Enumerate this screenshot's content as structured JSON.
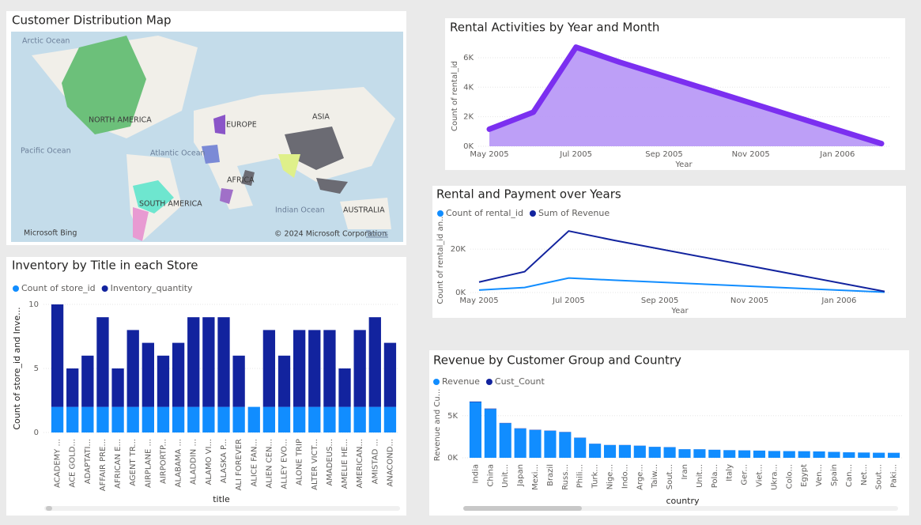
{
  "map": {
    "title": "Customer Distribution Map",
    "labels": [
      "Arctic Ocean",
      "NORTH AMERICA",
      "EUROPE",
      "ASIA",
      "Pacific Ocean",
      "Atlantic Ocean",
      "AFRICA",
      "SOUTH AMERICA",
      "Indian Ocean",
      "AUSTRALIA"
    ],
    "attribution": [
      "Microsoft Bing",
      "© 2024 Microsoft Corporation",
      "Terms"
    ]
  },
  "chart_data": [
    {
      "type": "area",
      "title": "Rental Activities by Year and Month",
      "x_label": "Year",
      "y_label": "Count of rental_id",
      "x": [
        "May 2005",
        "Jun 2005",
        "Jul 2005",
        "Aug 2005",
        "Feb 2006"
      ],
      "values": [
        1156,
        2311,
        6709,
        5686,
        182
      ],
      "color": "#7b2ff0",
      "xlim": [
        "May 2005",
        "Feb 2006"
      ],
      "xticks": [
        "May 2005",
        "Jul 2005",
        "Sep 2005",
        "Nov 2005",
        "Jan 2006"
      ],
      "ylim": [
        0,
        6800
      ],
      "yticks": [
        {
          "value": 0,
          "label": "0K"
        },
        {
          "value": 2000,
          "label": "2K"
        },
        {
          "value": 4000,
          "label": "4K"
        },
        {
          "value": 6000,
          "label": "6K"
        }
      ],
      "grid": true
    },
    {
      "type": "line",
      "title": "Rental and Payment over Years",
      "x_label": "Year",
      "y_label": "Count of rental_id an...",
      "x": [
        "May 2005",
        "Jun 2005",
        "Jul 2005",
        "Aug 2005",
        "Feb 2006"
      ],
      "series": [
        {
          "name": "Count of rental_id",
          "color": "#118dff",
          "values": [
            1156,
            2311,
            6709,
            5686,
            182
          ]
        },
        {
          "name": "Sum of Revenue",
          "color": "#12239e",
          "values": [
            4824,
            9632,
            28374,
            24072,
            514
          ]
        }
      ],
      "xlim": [
        "May 2005",
        "Feb 2006"
      ],
      "xticks": [
        "May 2005",
        "Jul 2005",
        "Sep 2005",
        "Nov 2005",
        "Jan 2006"
      ],
      "ylim": [
        0,
        31000
      ],
      "yticks": [
        {
          "value": 0,
          "label": "0K"
        },
        {
          "value": 20000,
          "label": "20K"
        }
      ],
      "grid": true
    },
    {
      "type": "bar",
      "stacked": true,
      "title": "Inventory by Title in each Store",
      "x_label": "title",
      "y_label": "Count of store_id and Inve...",
      "categories": [
        "ACADEMY ...",
        "ACE GOLD...",
        "ADAPTATI...",
        "AFFAIR PRE...",
        "AFRICAN E...",
        "AGENT TR...",
        "AIRPLANE ...",
        "AIRPORTP...",
        "ALABAMA ...",
        "ALADDIN ...",
        "ALAMO VI...",
        "ALASKA P...",
        "ALI FOREVER",
        "ALICE FAN...",
        "ALIEN CEN...",
        "ALLEY EVO...",
        "ALONE TRIP",
        "ALTER VICT...",
        "AMADEUS...",
        "AMELIE HE...",
        "AMERICAN...",
        "AMISTAD ...",
        "ANACOND..."
      ],
      "series": [
        {
          "name": "Count of store_id",
          "color": "#118dff",
          "values": [
            2,
            2,
            2,
            2,
            2,
            2,
            2,
            2,
            2,
            2,
            2,
            2,
            2,
            2,
            2,
            2,
            2,
            2,
            2,
            2,
            2,
            2,
            2
          ]
        },
        {
          "name": "Inventory_quantity",
          "color": "#12239e",
          "values": [
            8,
            3,
            4,
            7,
            3,
            6,
            5,
            4,
            5,
            7,
            7,
            7,
            4,
            0,
            6,
            4,
            6,
            6,
            6,
            3,
            6,
            7,
            5
          ]
        }
      ],
      "ylim": [
        0,
        10
      ],
      "yticks": [
        0,
        5,
        10
      ],
      "grid": true
    },
    {
      "type": "bar",
      "stacked": true,
      "title": "Revenue by Customer Group and Country",
      "x_label": "country",
      "y_label": "Revenue and Cu...",
      "categories": [
        "India",
        "China",
        "Unit...",
        "Japan",
        "Mexi...",
        "Brazil",
        "Russ...",
        "Phili...",
        "Turk...",
        "Nige...",
        "Indo...",
        "Arge...",
        "Taiw...",
        "Sout...",
        "Iran",
        "Unit...",
        "Pola...",
        "Italy",
        "Ger...",
        "Viet...",
        "Ukra...",
        "Colo...",
        "Egypt",
        "Ven...",
        "Spain",
        "Can...",
        "Net...",
        "Sout...",
        "Paki..."
      ],
      "series": [
        {
          "name": "Revenue",
          "color": "#118dff",
          "values": [
            6628,
            5799,
            4110,
            3470,
            3307,
            3201,
            3045,
            2381,
            1662,
            1511,
            1510,
            1434,
            1299,
            1261,
            1018,
            1010,
            950,
            900,
            880,
            850,
            800,
            790,
            780,
            750,
            700,
            650,
            620,
            600,
            590
          ]
        },
        {
          "name": "Cust_Count",
          "color": "#12239e",
          "values": [
            60,
            53,
            36,
            31,
            30,
            28,
            28,
            20,
            15,
            13,
            14,
            13,
            10,
            11,
            8,
            9,
            8,
            7,
            7,
            6,
            6,
            6,
            6,
            7,
            5,
            5,
            5,
            5,
            5
          ]
        }
      ],
      "ylim": [
        0,
        7800
      ],
      "yticks": [
        {
          "value": 0,
          "label": "0K"
        },
        {
          "value": 5000,
          "label": "5K"
        }
      ],
      "grid": true
    }
  ]
}
